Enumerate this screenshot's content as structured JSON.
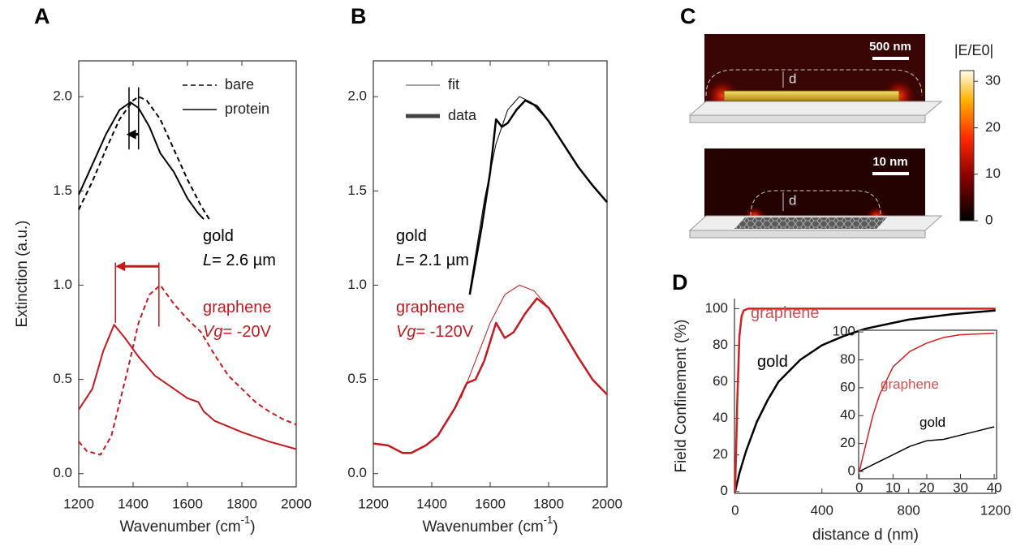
{
  "chart_data": [
    {
      "type": "line",
      "panel_label": "A",
      "xlim": [
        1200,
        2000
      ],
      "ylim": [
        -0.07,
        2.19
      ],
      "xticks": [
        1200,
        1400,
        1600,
        1800,
        2000
      ],
      "yticks": [
        {
          "value": 0,
          "label": "0.0"
        },
        0.5,
        {
          "value": 1,
          "label": "1.0"
        },
        1.5,
        {
          "value": 2,
          "label": "2.0"
        }
      ],
      "xlabel": [
        "Wavenumber (cm",
        "-1",
        ")"
      ],
      "ylabel": "Extinction (a.u.)",
      "frame": true,
      "legend": [
        {
          "name": "bare",
          "dash": true,
          "width": 2
        },
        {
          "name": "protein",
          "dash": false,
          "width": 2
        }
      ],
      "series": [
        {
          "color": "#000000",
          "dash": true,
          "width": 2,
          "x": [
            1200,
            1250,
            1300,
            1350,
            1400,
            1420,
            1450,
            1500,
            1550,
            1600,
            1650,
            1680
          ],
          "values": [
            1.4,
            1.55,
            1.72,
            1.88,
            1.98,
            2.0,
            1.98,
            1.88,
            1.72,
            1.56,
            1.42,
            1.35
          ]
        },
        {
          "color": "#000000",
          "dash": false,
          "width": 2,
          "x": [
            1200,
            1250,
            1300,
            1350,
            1390,
            1420,
            1460,
            1500,
            1550,
            1600,
            1640,
            1660
          ],
          "values": [
            1.48,
            1.64,
            1.8,
            1.93,
            1.97,
            1.94,
            1.84,
            1.7,
            1.6,
            1.46,
            1.38,
            1.35
          ]
        },
        {
          "color": "#c41a1f",
          "dash": true,
          "width": 2,
          "x": [
            1200,
            1230,
            1280,
            1320,
            1380,
            1420,
            1460,
            1500,
            1550,
            1600,
            1650,
            1700,
            1750,
            1800,
            1850,
            1900,
            1950,
            2000
          ],
          "values": [
            0.17,
            0.12,
            0.1,
            0.2,
            0.55,
            0.8,
            0.95,
            1.0,
            0.9,
            0.82,
            0.75,
            0.63,
            0.52,
            0.45,
            0.38,
            0.33,
            0.29,
            0.26
          ]
        },
        {
          "color": "#c41a1f",
          "dash": false,
          "width": 2,
          "x": [
            1200,
            1250,
            1290,
            1330,
            1370,
            1420,
            1480,
            1550,
            1600,
            1640,
            1660,
            1700,
            1800,
            1900,
            2000
          ],
          "values": [
            0.34,
            0.45,
            0.65,
            0.79,
            0.72,
            0.62,
            0.52,
            0.45,
            0.4,
            0.38,
            0.33,
            0.28,
            0.22,
            0.17,
            0.13
          ]
        }
      ],
      "marker_lines": [
        {
          "x": 1385,
          "y": [
            1.72,
            2.05
          ],
          "color": "#000000"
        },
        {
          "x": 1420,
          "y": [
            1.72,
            2.05
          ],
          "color": "#000000"
        },
        {
          "x": 1335,
          "y": [
            0.8,
            1.12
          ],
          "color": "#c41a1f"
        },
        {
          "x": 1495,
          "y": [
            0.78,
            1.12
          ],
          "color": "#c41a1f"
        }
      ],
      "arrows": [
        {
          "from": 1420,
          "to": 1375,
          "y": 1.8,
          "color": "#000000"
        },
        {
          "from": 1495,
          "to": 1335,
          "y": 1.1,
          "color": "#c41a1f"
        }
      ],
      "annotations": [
        {
          "parts": [
            "gold"
          ],
          "color": "#000000"
        },
        {
          "parts": [
            "L",
            "= 2.6 µm"
          ],
          "color": "#000000"
        },
        {
          "parts": [
            "graphene"
          ],
          "color": "#c41a1f"
        },
        {
          "parts": [
            "Vg",
            "= -20V"
          ],
          "color": "#c41a1f"
        }
      ]
    },
    {
      "type": "line",
      "panel_label": "B",
      "xlim": [
        1200,
        2000
      ],
      "ylim": [
        -0.07,
        2.19
      ],
      "xticks": [
        1200,
        1400,
        1600,
        1800,
        2000
      ],
      "yticks": [
        {
          "value": 0,
          "label": "0.0"
        },
        0.5,
        {
          "value": 1,
          "label": "1.0"
        },
        1.5,
        {
          "value": 2,
          "label": "2.0"
        }
      ],
      "xlabel": [
        "Wavenumber (cm",
        "-1",
        ")"
      ],
      "frame": true,
      "legend": [
        {
          "name": "fit",
          "dash": false,
          "width": 1
        },
        {
          "name": "data",
          "dash": false,
          "width": 5
        }
      ],
      "series": [
        {
          "color": "#000000",
          "dash": false,
          "width": 1,
          "x": [
            1530,
            1580,
            1620,
            1660,
            1700,
            1740,
            1800,
            1850,
            1900,
            1950,
            2000
          ],
          "values": [
            0.97,
            1.45,
            1.75,
            1.93,
            2.0,
            1.97,
            1.87,
            1.75,
            1.63,
            1.53,
            1.44
          ]
        },
        {
          "color": "#000000",
          "dash": false,
          "width": 2.5,
          "x": [
            1530,
            1570,
            1600,
            1620,
            1640,
            1660,
            1690,
            1720,
            1760,
            1800,
            1850,
            1900,
            1950,
            2000
          ],
          "values": [
            0.95,
            1.3,
            1.6,
            1.88,
            1.84,
            1.86,
            1.93,
            1.98,
            1.95,
            1.87,
            1.75,
            1.63,
            1.53,
            1.44
          ]
        },
        {
          "color": "#c41a1f",
          "dash": false,
          "width": 1,
          "x": [
            1500,
            1550,
            1600,
            1650,
            1700,
            1750,
            1800,
            1850,
            1900,
            1950,
            2000
          ],
          "values": [
            0.4,
            0.6,
            0.8,
            0.95,
            1.0,
            0.97,
            0.88,
            0.75,
            0.62,
            0.5,
            0.42
          ]
        },
        {
          "color": "#c41a1f",
          "dash": false,
          "width": 2.5,
          "x": [
            1200,
            1250,
            1300,
            1330,
            1380,
            1420,
            1480,
            1520,
            1550,
            1580,
            1620,
            1650,
            1680,
            1720,
            1760,
            1800,
            1850,
            1900,
            1950,
            2000
          ],
          "values": [
            0.16,
            0.15,
            0.11,
            0.11,
            0.15,
            0.2,
            0.35,
            0.48,
            0.5,
            0.6,
            0.8,
            0.72,
            0.75,
            0.85,
            0.93,
            0.88,
            0.75,
            0.62,
            0.5,
            0.42
          ]
        }
      ],
      "annotations": [
        {
          "parts": [
            "gold"
          ],
          "color": "#000000"
        },
        {
          "parts": [
            "L",
            "= 2.1 µm"
          ],
          "color": "#000000"
        },
        {
          "parts": [
            "graphene"
          ],
          "color": "#c41a1f"
        },
        {
          "parts": [
            "Vg",
            "= -120V"
          ],
          "color": "#c41a1f"
        }
      ]
    },
    {
      "type": "line",
      "panel_label": "D",
      "xlim": [
        -3,
        1205
      ],
      "ylim": [
        -1,
        105.5
      ],
      "xticks": [
        0,
        400,
        800,
        1200
      ],
      "yticks": [
        0,
        20,
        40,
        60,
        80,
        100
      ],
      "xlabel": [
        "distance d (nm)"
      ],
      "ylabel": "Field Confinement  (%)",
      "frame": false,
      "series": [
        {
          "color": "#000000",
          "dash": false,
          "width": 2.5,
          "x": [
            0,
            20,
            50,
            100,
            150,
            200,
            300,
            400,
            500,
            600,
            800,
            1000,
            1200
          ],
          "values": [
            0,
            10,
            22,
            38,
            50,
            60,
            72,
            80,
            85,
            89,
            94,
            97,
            99
          ]
        },
        {
          "color": "#d42020",
          "dash": false,
          "width": 2.5,
          "x": [
            0,
            10,
            20,
            30,
            40,
            60,
            1200
          ],
          "values": [
            0,
            50,
            85,
            96,
            99,
            100,
            100
          ]
        }
      ],
      "annotations": [
        {
          "parts": [
            "graphene"
          ],
          "color": "#d05050"
        },
        {
          "parts": [
            "gold"
          ],
          "color": "#000000"
        }
      ]
    },
    {
      "type": "line",
      "xlim": [
        -0.2,
        40.7
      ],
      "ylim": [
        -5.2,
        101.2
      ],
      "xticks": [
        0,
        10,
        20,
        30,
        40
      ],
      "yticks": [
        0,
        20,
        40,
        60,
        80,
        100
      ],
      "frame": true,
      "series": [
        {
          "color": "#000000",
          "dash": false,
          "width": 1.5,
          "x": [
            0,
            5,
            10,
            15,
            20,
            25,
            30,
            35,
            40
          ],
          "values": [
            0,
            6,
            12,
            18,
            22,
            23,
            26,
            29,
            32
          ]
        },
        {
          "color": "#d42020",
          "dash": false,
          "width": 1.5,
          "x": [
            0,
            2,
            4,
            6,
            8,
            10,
            15,
            20,
            25,
            30,
            40
          ],
          "values": [
            0,
            20,
            40,
            55,
            65,
            75,
            86,
            92,
            96,
            98,
            99
          ]
        }
      ],
      "annotations": [
        {
          "parts": [
            "graphene"
          ],
          "color": "#d05050"
        },
        {
          "parts": [
            "gold"
          ],
          "color": "#000000"
        }
      ]
    }
  ],
  "panel_c": {
    "panel_label": "C",
    "scale_bars": [
      "500 nm",
      "10 nm"
    ],
    "gap_label": "d",
    "colorbar": {
      "label": "|E/E0|",
      "lim": [
        0,
        32.3
      ],
      "ticks": [
        0,
        10,
        20,
        30
      ]
    }
  }
}
